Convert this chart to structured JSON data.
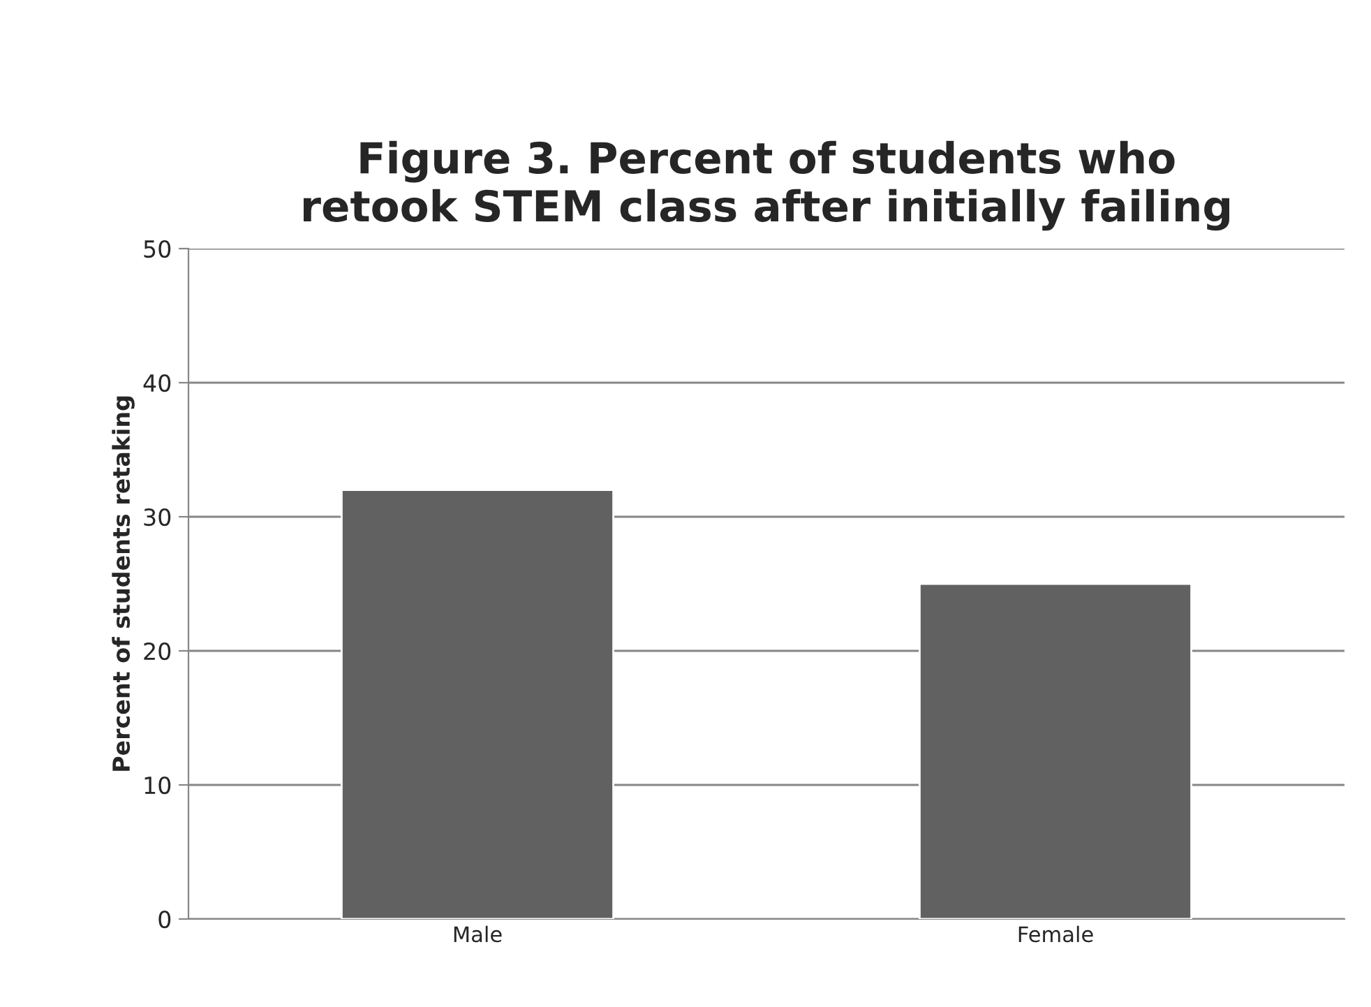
{
  "chart_data": {
    "type": "bar",
    "title": "Figure 3. Percent of students who\nretook STEM class after initially failing",
    "ylabel": "Percent of students retaking",
    "categories": [
      "Male",
      "Female"
    ],
    "values": [
      32,
      25
    ],
    "color": "#616161",
    "ylim": [
      0,
      50
    ],
    "yticks": [
      0,
      10,
      20,
      30,
      40,
      50
    ],
    "grid": "y",
    "legend": false
  }
}
